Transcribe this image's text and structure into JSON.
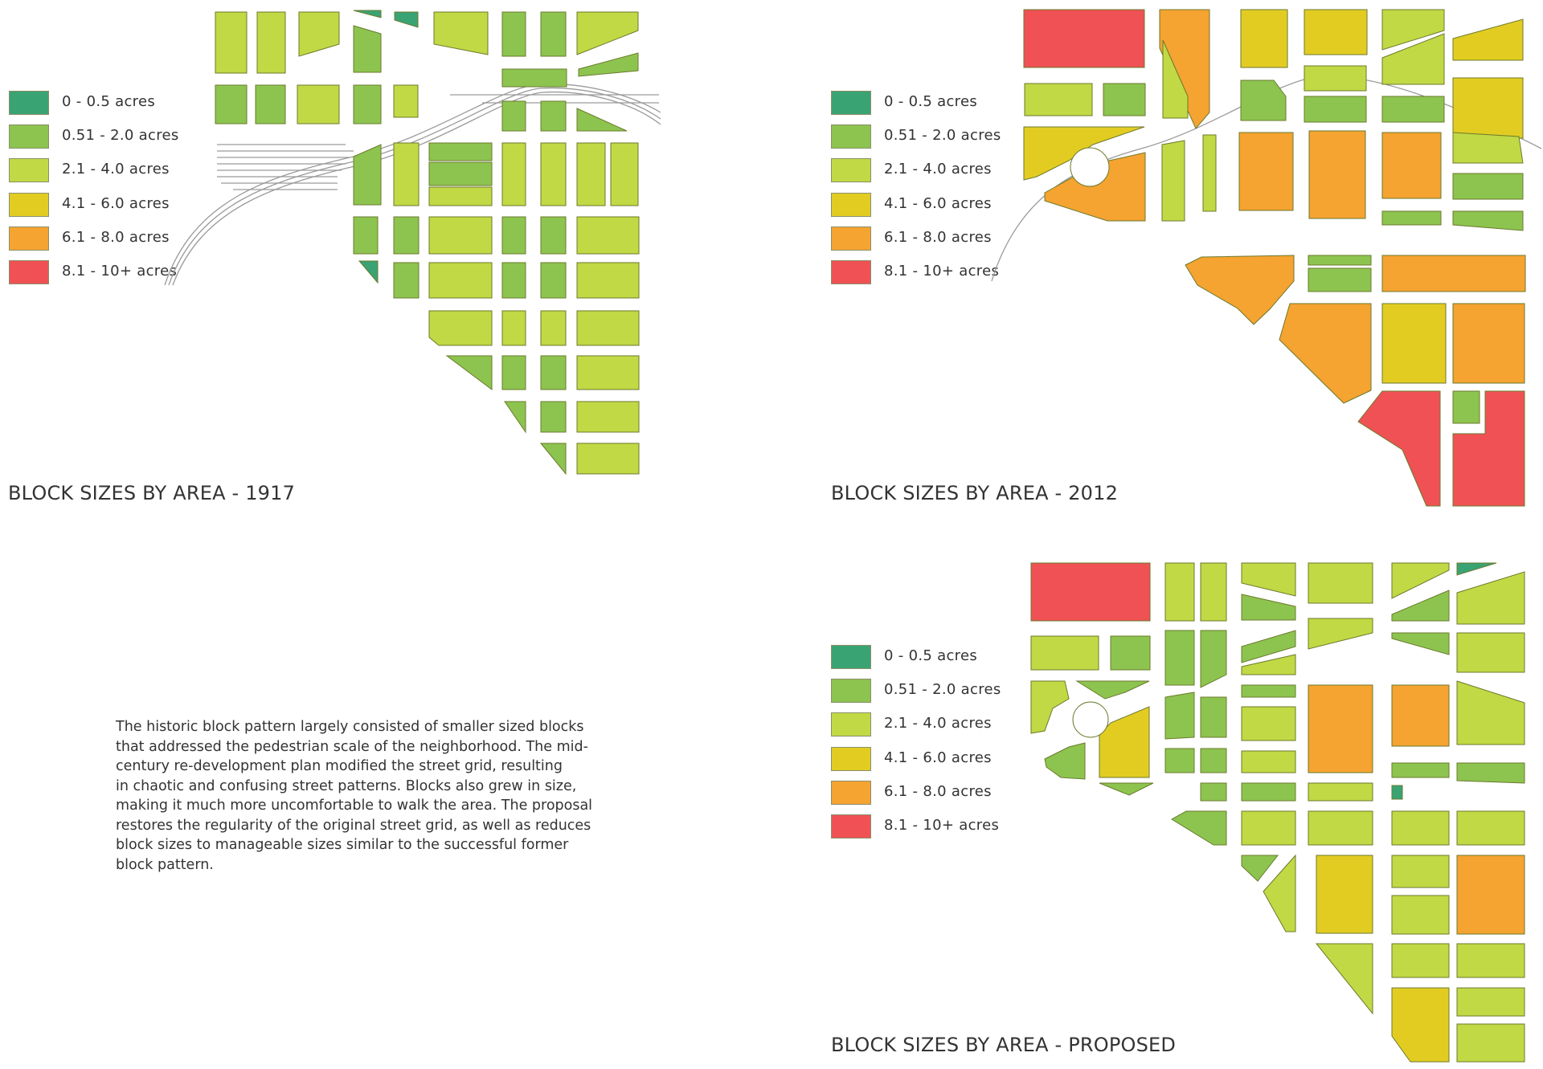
{
  "colors": {
    "c0": "#3aa374",
    "c1": "#8cc44f",
    "c2": "#c1d944",
    "c3": "#e3cc22",
    "c4": "#f5a331",
    "c5": "#ef5154"
  },
  "legend": [
    {
      "label": "0 - 0.5 acres",
      "color": "#3aa374"
    },
    {
      "label": "0.51 - 2.0 acres",
      "color": "#8cc44f"
    },
    {
      "label": "2.1 - 4.0 acres",
      "color": "#c1d944"
    },
    {
      "label": "4.1 - 6.0 acres",
      "color": "#e3cc22"
    },
    {
      "label": "6.1 - 8.0 acres",
      "color": "#f5a331"
    },
    {
      "label": "8.1 - 10+ acres",
      "color": "#ef5154"
    }
  ],
  "panels": {
    "y1917": {
      "title": "BLOCK SIZES BY AREA - 1917"
    },
    "y2012": {
      "title": "BLOCK SIZES BY AREA - 2012"
    },
    "proposed": {
      "title": "BLOCK SIZES BY AREA - PROPOSED"
    }
  },
  "description": {
    "lines": [
      "The historic block pattern largely consisted of smaller sized blocks",
      "that addressed the pedestrian scale of the neighborhood. The mid-",
      "century re-development plan modified the street grid, resulting",
      "in chaotic and confusing street patterns. Blocks also grew in size,",
      "making it much more uncomfortable to walk the area. The proposal",
      "restores the regularity of the original street grid, as well as reduces",
      "block sizes to manageable sizes similar to the successful former",
      "block pattern."
    ]
  }
}
